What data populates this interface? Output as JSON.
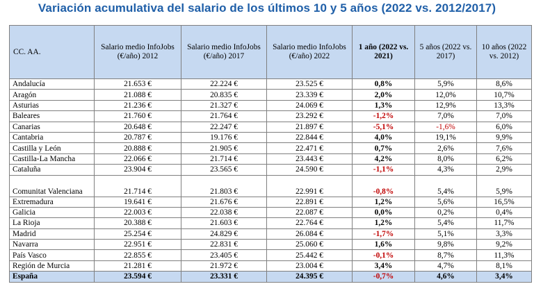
{
  "title": "Variación acumulativa del salario de los últimos 10 y 5 años (2022 vs. 2012/2017)",
  "columns": {
    "region": "CC. AA.",
    "s2012": "Salario medio InfoJobs (€/año) 2012",
    "s2017": "Salario medio InfoJobs (€/año) 2017",
    "s2022": "Salario medio InfoJobs (€/año) 2022",
    "v1": "1 año (2022 vs. 2021)",
    "v5": "5 años (2022 vs. 2017)",
    "v10": "10 años (2022 vs. 2012)"
  },
  "rows": [
    {
      "region": "Andalucía",
      "s2012": "21.653 €",
      "s2017": "22.224 €",
      "s2022": "23.525 €",
      "v1": "0,8%",
      "v5": "5,9%",
      "v10": "8,6%"
    },
    {
      "region": "Aragón",
      "s2012": "21.088 €",
      "s2017": "20.835 €",
      "s2022": "23.339 €",
      "v1": "2,0%",
      "v5": "12,0%",
      "v10": "10,7%"
    },
    {
      "region": "Asturias",
      "s2012": "21.236 €",
      "s2017": "21.327 €",
      "s2022": "24.069 €",
      "v1": "1,3%",
      "v5": "12,9%",
      "v10": "13,3%"
    },
    {
      "region": "Baleares",
      "s2012": "21.760 €",
      "s2017": "21.764 €",
      "s2022": "23.292 €",
      "v1": "-1,2%",
      "v5": "7,0%",
      "v10": "7,0%"
    },
    {
      "region": "Canarias",
      "s2012": "20.648 €",
      "s2017": "22.247 €",
      "s2022": "21.897 €",
      "v1": "-5,1%",
      "v5": "-1,6%",
      "v10": "6,0%"
    },
    {
      "region": "Cantabria",
      "s2012": "20.787 €",
      "s2017": "19.176 €",
      "s2022": "22.844 €",
      "v1": "4,0%",
      "v5": "19,1%",
      "v10": "9,9%"
    },
    {
      "region": "Castilla y León",
      "s2012": "20.888 €",
      "s2017": "21.905 €",
      "s2022": "22.471 €",
      "v1": "0,7%",
      "v5": "2,6%",
      "v10": "7,6%"
    },
    {
      "region": "Castilla-La Mancha",
      "s2012": "22.066 €",
      "s2017": "21.714 €",
      "s2022": "23.443 €",
      "v1": "4,2%",
      "v5": "8,0%",
      "v10": "6,2%"
    },
    {
      "region": "Cataluña",
      "s2012": "23.904 €",
      "s2017": "23.565 €",
      "s2022": "24.590 €",
      "v1": "-1,1%",
      "v5": "4,3%",
      "v10": "2,9%"
    },
    {
      "region": "Comunitat Valenciana",
      "s2012": "21.714 €",
      "s2017": "21.803 €",
      "s2022": "22.991 €",
      "v1": "-0,8%",
      "v5": "5,4%",
      "v10": "5,9%"
    },
    {
      "region": "Extremadura",
      "s2012": "19.641 €",
      "s2017": "21.676 €",
      "s2022": "22.891 €",
      "v1": "1,2%",
      "v5": "5,6%",
      "v10": "16,5%"
    },
    {
      "region": "Galicia",
      "s2012": "22.003 €",
      "s2017": "22.038 €",
      "s2022": "22.087 €",
      "v1": "0,0%",
      "v5": "0,2%",
      "v10": "0,4%"
    },
    {
      "region": "La Rioja",
      "s2012": "20.388 €",
      "s2017": "21.603 €",
      "s2022": "22.764 €",
      "v1": "1,2%",
      "v5": "5,4%",
      "v10": "11,7%"
    },
    {
      "region": "Madrid",
      "s2012": "25.254 €",
      "s2017": "24.829 €",
      "s2022": "26.084 €",
      "v1": "-1,7%",
      "v5": "5,1%",
      "v10": "3,3%"
    },
    {
      "region": "Navarra",
      "s2012": "22.951 €",
      "s2017": "22.831 €",
      "s2022": "25.060 €",
      "v1": "1,6%",
      "v5": "9,8%",
      "v10": "9,2%"
    },
    {
      "region": "País Vasco",
      "s2012": "22.855 €",
      "s2017": "23.405 €",
      "s2022": "25.442 €",
      "v1": "-0,1%",
      "v5": "8,7%",
      "v10": "11,3%"
    },
    {
      "region": "Región de Murcia",
      "s2012": "21.281 €",
      "s2017": "21.972 €",
      "s2022": "23.004 €",
      "v1": "3,4%",
      "v5": "4,7%",
      "v10": "8,1%"
    }
  ],
  "total": {
    "region": "España",
    "s2012": "23.594 €",
    "s2017": "23.331 €",
    "s2022": "24.395 €",
    "v1": "-0,7%",
    "v5": "4,6%",
    "v10": "3,4%"
  },
  "colors": {
    "title": "#1f5fa8",
    "header_bg": "#c6d9f1",
    "negative": "#c00000",
    "border": "#7f7f7f"
  }
}
